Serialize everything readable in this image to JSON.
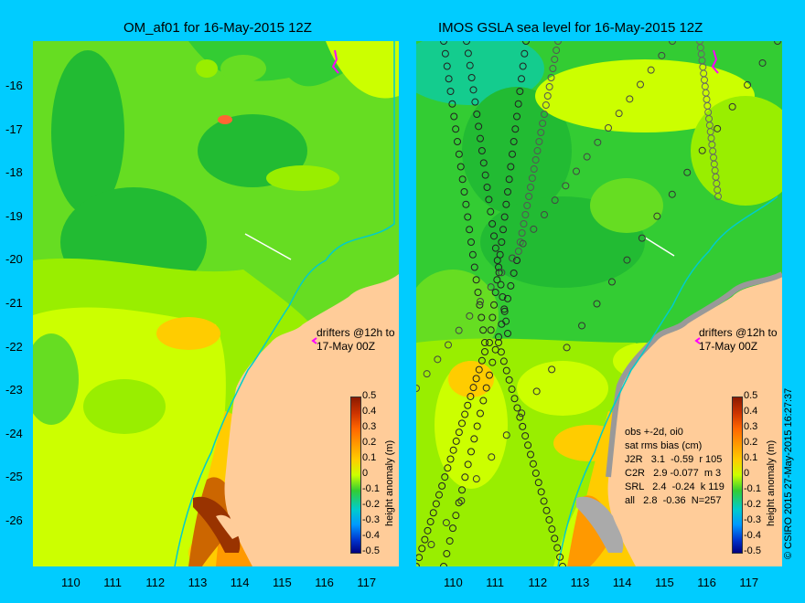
{
  "left_title": "OM_af01 for 16-May-2015 12Z",
  "right_title": "IMOS GSLA sea level  for 16-May-2015 12Z",
  "y_ticks": [
    "-16",
    "-17",
    "-18",
    "-19",
    "-20",
    "-21",
    "-22",
    "-23",
    "-24",
    "-25",
    "-26"
  ],
  "x_ticks": [
    "110",
    "111",
    "112",
    "113",
    "114",
    "115",
    "116",
    "117"
  ],
  "colorbar": {
    "ticks": [
      "0.5",
      "0.4",
      "0.3",
      "0.2",
      "0.1",
      "0",
      "-0.1",
      "-0.2",
      "-0.3",
      "-0.4",
      "-0.5"
    ],
    "title": "height anomaly (m)"
  },
  "drifters_note": {
    "line1": "drifters @12h to",
    "line2": "17-May 00Z"
  },
  "stats": {
    "line1": "obs +-2d, oi0",
    "line2": "sat rms bias (cm)",
    "rows": [
      "J2R   3.1  -0.59  r 105",
      "C2R   2.9 -0.077  m 3",
      "SRL   2.4  -0.24  k 119",
      "all   2.8  -0.36  N=257"
    ]
  },
  "copyright": "© CSIRO 2015   27-May-2015 16:27:37",
  "colors": {
    "background": "#00ccff",
    "land": "#ffcc99",
    "sea_green": "#33cc33",
    "sea_yellow": "#ccff00",
    "orange": "#ff9900"
  }
}
